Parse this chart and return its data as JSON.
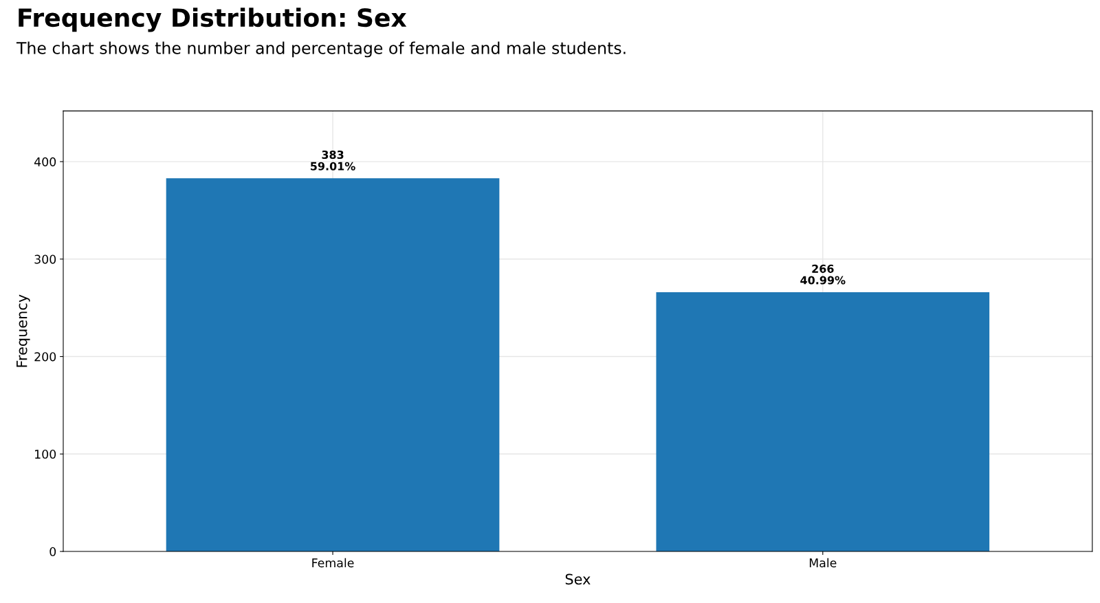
{
  "chart_data": {
    "type": "bar",
    "title": "Frequency Distribution: Sex",
    "subtitle": "The chart shows the number and percentage of female and male students.",
    "xlabel": "Sex",
    "ylabel": "Frequency",
    "categories": [
      "Female",
      "Male"
    ],
    "values": [
      383,
      266
    ],
    "value_labels": [
      "383\n59.01%",
      "266\n40.99%"
    ],
    "color": "#1f77b4",
    "ylim": [
      0,
      452
    ],
    "yticks": [
      0,
      100,
      200,
      300,
      400
    ],
    "grid": true
  }
}
